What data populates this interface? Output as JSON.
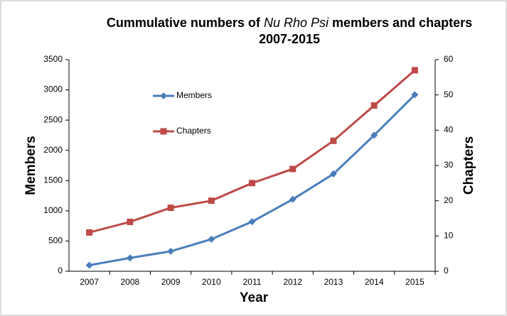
{
  "chart_data": {
    "type": "line",
    "title": "Cummulative numbers of",
    "title_italic": "Nu Rho Psi",
    "title_end": "members and chapters",
    "subtitle": "2007-2015",
    "xlabel": "Year",
    "ylabel": "Members",
    "y2label": "Chapters",
    "categories": [
      "2007",
      "2008",
      "2009",
      "2010",
      "2011",
      "2012",
      "2013",
      "2014",
      "2015"
    ],
    "series": [
      {
        "name": "Members",
        "color": "#4a7ebb",
        "marker": "diamond",
        "values": [
          100,
          220,
          330,
          530,
          820,
          1190,
          1610,
          2250,
          2920
        ]
      },
      {
        "name": "Chapters",
        "color": "#be4b48",
        "marker": "square",
        "axis": "y2",
        "values": [
          11,
          14,
          18,
          20,
          25,
          29,
          37,
          47,
          57
        ]
      }
    ],
    "ylim": [
      0,
      3500
    ],
    "yticks": [
      0,
      500,
      1000,
      1500,
      2000,
      2500,
      3000,
      3500
    ],
    "y2lim": [
      0,
      60
    ],
    "y2ticks": [
      0,
      10,
      20,
      30,
      40,
      50,
      60
    ],
    "grid": false,
    "legend": "upper left"
  }
}
